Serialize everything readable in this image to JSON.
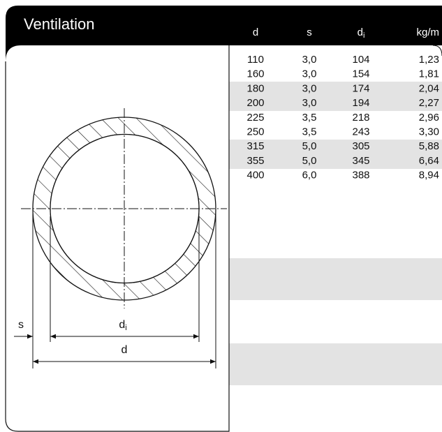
{
  "header": {
    "title": "Ventilation"
  },
  "table": {
    "columns": [
      "d",
      "s",
      {
        "base": "d",
        "sub": "i"
      },
      "kg/m"
    ],
    "rows": [
      [
        "110",
        "3,0",
        "104",
        "1,23"
      ],
      [
        "160",
        "3,0",
        "154",
        "1,81"
      ],
      [
        "180",
        "3,0",
        "174",
        "2,04"
      ],
      [
        "200",
        "3,0",
        "194",
        "2,27"
      ],
      [
        "225",
        "3,5",
        "218",
        "2,96"
      ],
      [
        "250",
        "3,5",
        "243",
        "3,30"
      ],
      [
        "315",
        "5,0",
        "305",
        "5,88"
      ],
      [
        "355",
        "5,0",
        "345",
        "6,64"
      ],
      [
        "400",
        "6,0",
        "388",
        "8,94"
      ]
    ]
  },
  "diagram": {
    "labels": {
      "s": "s",
      "di": {
        "base": "d",
        "sub": "i"
      },
      "d": "d"
    }
  }
}
